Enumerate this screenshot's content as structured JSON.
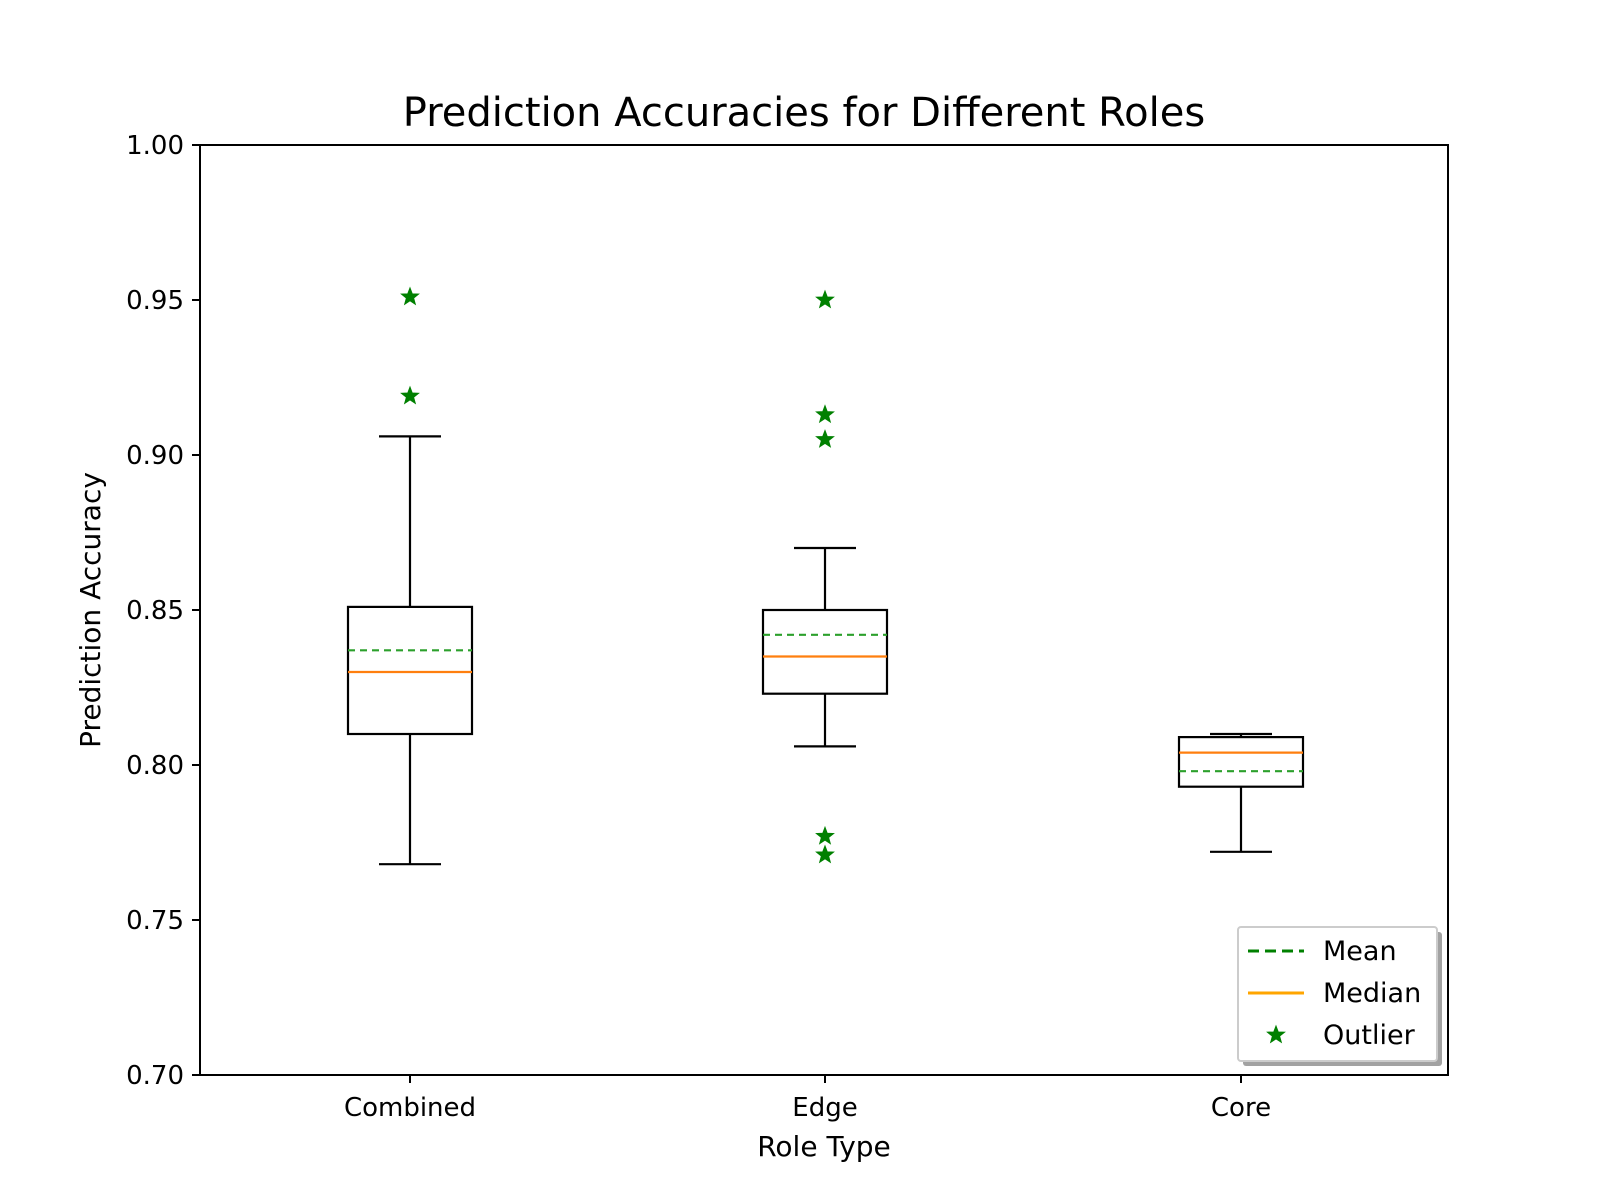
{
  "chart_data": {
    "type": "boxplot",
    "title": "Prediction Accuracies for Different Roles",
    "xlabel": "Role Type",
    "ylabel": "Prediction Accuracy",
    "ylim": [
      0.7,
      1.0
    ],
    "yticks": [
      "0.70",
      "0.75",
      "0.80",
      "0.85",
      "0.90",
      "0.95",
      "1.00"
    ],
    "grid": false,
    "legend_position": "bottom-right",
    "categories": [
      "Combined",
      "Edge",
      "Core"
    ],
    "boxes": [
      {
        "category": "Combined",
        "whisker_low": 0.768,
        "q1": 0.81,
        "median": 0.83,
        "mean": 0.837,
        "q3": 0.851,
        "whisker_high": 0.906,
        "outliers": [
          0.919,
          0.951
        ]
      },
      {
        "category": "Edge",
        "whisker_low": 0.806,
        "q1": 0.823,
        "median": 0.835,
        "mean": 0.842,
        "q3": 0.85,
        "whisker_high": 0.87,
        "outliers": [
          0.771,
          0.777,
          0.905,
          0.913,
          0.95
        ]
      },
      {
        "category": "Core",
        "whisker_low": 0.772,
        "q1": 0.793,
        "median": 0.804,
        "mean": 0.798,
        "q3": 0.809,
        "whisker_high": 0.81,
        "outliers": []
      }
    ],
    "legend": [
      {
        "label": "Mean",
        "style": "dashed",
        "color": "#008000"
      },
      {
        "label": "Median",
        "style": "solid",
        "color": "#FFA500"
      },
      {
        "label": "Outlier",
        "style": "star",
        "color": "#008000"
      }
    ],
    "colors": {
      "box": "#000000",
      "mean_line": "#2ca02c",
      "median_line": "#ff7f0e",
      "outlier": "#008000"
    }
  }
}
